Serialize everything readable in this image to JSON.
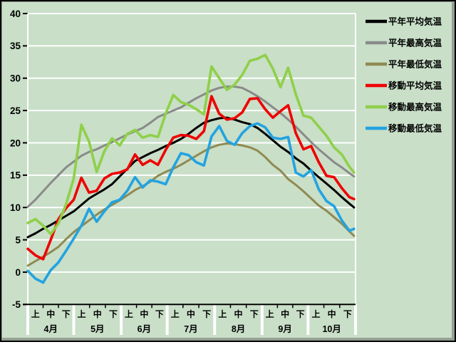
{
  "window": {
    "background": "#c9dfc8",
    "frame_color": "#000000",
    "bevel_color": "#93a093"
  },
  "chart_data": {
    "type": "line",
    "title": "",
    "xlabel": "",
    "ylabel": "",
    "ylim": [
      -5,
      40
    ],
    "ytick_step": 5,
    "ytick_labels": [
      "40",
      "35",
      "30",
      "25",
      "20",
      "15",
      "10",
      "5",
      "0",
      "-5"
    ],
    "grid": true,
    "grid_color": "#ffffff",
    "axis_line_color": "#000000",
    "legend_position": "right",
    "months": [
      "4月",
      "5月",
      "6月",
      "7月",
      "8月",
      "9月",
      "10月"
    ],
    "month_days": [
      30,
      31,
      30,
      31,
      31,
      30,
      31
    ],
    "period_labels": [
      "上",
      "中",
      "下"
    ],
    "days": [
      0,
      5,
      10,
      15,
      20,
      25,
      30,
      35,
      40,
      45,
      50,
      55,
      60,
      65,
      70,
      75,
      80,
      85,
      90,
      95,
      100,
      105,
      110,
      115,
      120,
      125,
      130,
      135,
      140,
      145,
      150,
      155,
      160,
      165,
      170,
      175,
      180,
      185,
      190,
      195,
      200,
      205,
      210,
      213
    ],
    "series": [
      {
        "name": "平年平均気温",
        "color": "#000000",
        "width": 3,
        "values": [
          5.4,
          6.0,
          6.7,
          7.3,
          8.0,
          8.7,
          9.4,
          10.4,
          11.4,
          12.1,
          12.8,
          13.6,
          14.8,
          16.0,
          17.2,
          17.8,
          18.4,
          18.9,
          19.5,
          20.0,
          20.6,
          21.4,
          22.3,
          23.1,
          23.5,
          23.8,
          23.9,
          23.6,
          23.2,
          22.9,
          22.3,
          21.4,
          20.4,
          19.4,
          18.6,
          17.6,
          16.8,
          15.7,
          14.7,
          13.7,
          12.7,
          11.6,
          10.6,
          10.0
        ]
      },
      {
        "name": "平年最高気温",
        "color": "#8a8a8a",
        "width": 3,
        "values": [
          10.1,
          11.2,
          12.5,
          13.8,
          15.0,
          16.2,
          17.1,
          18.0,
          18.6,
          19.0,
          19.6,
          20.1,
          20.7,
          21.3,
          21.8,
          22.3,
          23.1,
          24.0,
          24.5,
          25.0,
          25.5,
          26.2,
          26.9,
          27.5,
          28.1,
          28.5,
          28.7,
          28.7,
          28.5,
          27.9,
          27.2,
          26.4,
          25.5,
          24.6,
          23.6,
          22.5,
          21.3,
          20.1,
          19.0,
          18.0,
          17.0,
          16.2,
          15.3,
          14.8
        ]
      },
      {
        "name": "平年最低気温",
        "color": "#8f8a52",
        "width": 3,
        "values": [
          1.0,
          1.7,
          2.4,
          3.1,
          3.9,
          5.1,
          6.2,
          7.1,
          8.0,
          8.9,
          9.7,
          10.4,
          11.1,
          11.9,
          12.7,
          13.3,
          14.0,
          14.9,
          15.5,
          16.0,
          16.6,
          17.3,
          18.0,
          18.7,
          19.3,
          19.7,
          19.9,
          19.8,
          19.6,
          19.3,
          18.8,
          17.8,
          16.6,
          15.7,
          14.4,
          13.5,
          12.5,
          11.4,
          10.3,
          9.5,
          8.5,
          7.5,
          6.3,
          5.6
        ]
      },
      {
        "name": "移動平均気温",
        "color": "#ef0000",
        "width": 3.6,
        "values": [
          3.6,
          2.6,
          2.0,
          5.0,
          8.2,
          9.9,
          11.2,
          14.6,
          12.3,
          12.6,
          14.5,
          15.2,
          15.4,
          15.9,
          18.2,
          16.6,
          17.3,
          16.6,
          18.9,
          20.8,
          21.2,
          21.1,
          20.6,
          21.8,
          27.2,
          24.5,
          23.6,
          23.8,
          24.7,
          26.8,
          26.9,
          25.2,
          23.9,
          24.9,
          25.8,
          21.5,
          19.0,
          19.5,
          17.0,
          14.9,
          14.7,
          13.0,
          11.6,
          11.3
        ]
      },
      {
        "name": "移動最高気温",
        "color": "#8fd049",
        "width": 3.6,
        "values": [
          7.6,
          8.2,
          7.2,
          5.9,
          7.5,
          10.5,
          14.5,
          22.8,
          20.2,
          15.5,
          18.7,
          20.7,
          19.6,
          21.4,
          22.0,
          20.8,
          21.2,
          20.9,
          24.5,
          27.4,
          26.3,
          25.9,
          25.2,
          24.4,
          31.8,
          30.0,
          28.2,
          29.0,
          30.5,
          32.7,
          33.0,
          33.6,
          31.5,
          28.6,
          31.6,
          27.5,
          24.2,
          23.9,
          22.5,
          21.1,
          19.3,
          18.2,
          16.3,
          15.4
        ]
      },
      {
        "name": "移動最低気温",
        "color": "#23a3e1",
        "width": 3.6,
        "values": [
          0.2,
          -1.0,
          -1.6,
          0.3,
          1.5,
          3.3,
          5.2,
          7.2,
          9.8,
          7.8,
          9.4,
          10.8,
          11.2,
          12.6,
          14.7,
          13.1,
          14.2,
          14.0,
          13.6,
          16.2,
          18.4,
          18.1,
          17.0,
          16.5,
          21.0,
          22.6,
          20.3,
          19.7,
          21.5,
          22.6,
          23.0,
          22.4,
          20.8,
          20.6,
          20.9,
          15.4,
          14.8,
          15.8,
          12.8,
          11.0,
          10.2,
          8.0,
          6.4,
          6.7
        ]
      }
    ]
  }
}
